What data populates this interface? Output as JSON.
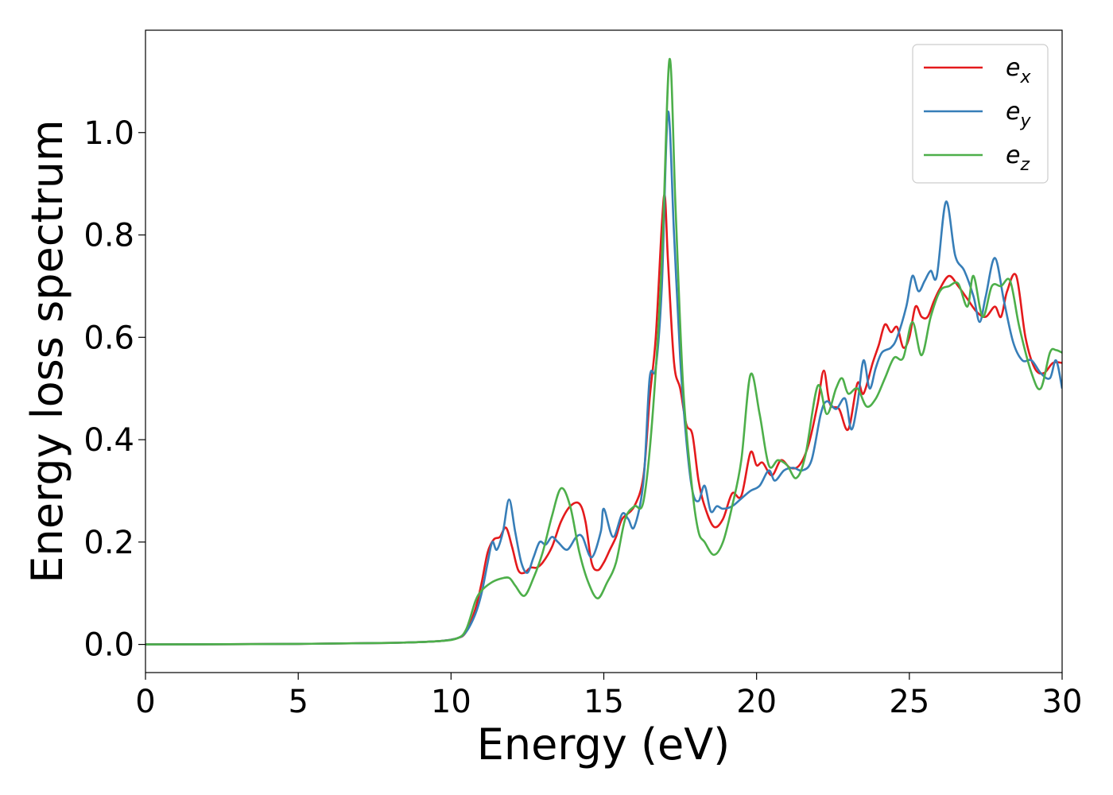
{
  "chart_data": {
    "type": "line",
    "title": "",
    "xlabel": "Energy (eV)",
    "ylabel": "Energy loss spectrum",
    "xlim": [
      0,
      30
    ],
    "ylim": [
      -0.055,
      1.2
    ],
    "xticks": [
      0,
      5,
      10,
      15,
      20,
      25,
      30
    ],
    "xtick_labels": [
      "0",
      "5",
      "10",
      "15",
      "20",
      "25",
      "30"
    ],
    "yticks": [
      0.0,
      0.2,
      0.4,
      0.6,
      0.8,
      1.0
    ],
    "ytick_labels": [
      "0.0",
      "0.2",
      "0.4",
      "0.6",
      "0.8",
      "1.0"
    ],
    "grid": false,
    "legend_position": "top-right",
    "series": [
      {
        "name": "e_x",
        "label_main": "e",
        "label_sub": "x",
        "color": "#e41a1c",
        "points": [
          [
            0,
            0.0
          ],
          [
            5,
            0.001
          ],
          [
            8,
            0.003
          ],
          [
            9.5,
            0.006
          ],
          [
            10.2,
            0.012
          ],
          [
            10.5,
            0.025
          ],
          [
            10.8,
            0.07
          ],
          [
            11.0,
            0.12
          ],
          [
            11.2,
            0.18
          ],
          [
            11.4,
            0.205
          ],
          [
            11.6,
            0.21
          ],
          [
            11.8,
            0.228
          ],
          [
            12.0,
            0.19
          ],
          [
            12.2,
            0.145
          ],
          [
            12.4,
            0.14
          ],
          [
            12.6,
            0.15
          ],
          [
            12.8,
            0.15
          ],
          [
            13.0,
            0.16
          ],
          [
            13.3,
            0.19
          ],
          [
            13.6,
            0.24
          ],
          [
            13.9,
            0.27
          ],
          [
            14.2,
            0.275
          ],
          [
            14.4,
            0.24
          ],
          [
            14.6,
            0.16
          ],
          [
            14.8,
            0.145
          ],
          [
            15.0,
            0.16
          ],
          [
            15.2,
            0.185
          ],
          [
            15.4,
            0.21
          ],
          [
            15.6,
            0.245
          ],
          [
            16.0,
            0.27
          ],
          [
            16.3,
            0.33
          ],
          [
            16.5,
            0.48
          ],
          [
            16.7,
            0.6
          ],
          [
            16.9,
            0.82
          ],
          [
            17.0,
            0.875
          ],
          [
            17.1,
            0.75
          ],
          [
            17.3,
            0.55
          ],
          [
            17.5,
            0.5
          ],
          [
            17.7,
            0.43
          ],
          [
            17.9,
            0.41
          ],
          [
            18.1,
            0.32
          ],
          [
            18.3,
            0.27
          ],
          [
            18.6,
            0.23
          ],
          [
            18.9,
            0.245
          ],
          [
            19.2,
            0.295
          ],
          [
            19.5,
            0.29
          ],
          [
            19.8,
            0.375
          ],
          [
            20.0,
            0.35
          ],
          [
            20.2,
            0.355
          ],
          [
            20.5,
            0.33
          ],
          [
            20.8,
            0.36
          ],
          [
            21.1,
            0.345
          ],
          [
            21.4,
            0.35
          ],
          [
            21.7,
            0.39
          ],
          [
            22.0,
            0.47
          ],
          [
            22.2,
            0.535
          ],
          [
            22.4,
            0.47
          ],
          [
            22.7,
            0.46
          ],
          [
            23.0,
            0.42
          ],
          [
            23.3,
            0.51
          ],
          [
            23.5,
            0.49
          ],
          [
            23.8,
            0.55
          ],
          [
            24.0,
            0.585
          ],
          [
            24.2,
            0.625
          ],
          [
            24.4,
            0.61
          ],
          [
            24.6,
            0.62
          ],
          [
            24.8,
            0.58
          ],
          [
            25.0,
            0.6
          ],
          [
            25.2,
            0.66
          ],
          [
            25.4,
            0.64
          ],
          [
            25.6,
            0.64
          ],
          [
            25.8,
            0.67
          ],
          [
            26.0,
            0.695
          ],
          [
            26.3,
            0.72
          ],
          [
            26.6,
            0.7
          ],
          [
            26.9,
            0.675
          ],
          [
            27.2,
            0.65
          ],
          [
            27.5,
            0.64
          ],
          [
            27.8,
            0.66
          ],
          [
            28.0,
            0.64
          ],
          [
            28.2,
            0.69
          ],
          [
            28.5,
            0.72
          ],
          [
            28.8,
            0.6
          ],
          [
            29.1,
            0.54
          ],
          [
            29.4,
            0.53
          ],
          [
            29.7,
            0.55
          ],
          [
            30.0,
            0.55
          ]
        ]
      },
      {
        "name": "e_y",
        "label_main": "e",
        "label_sub": "y",
        "color": "#377eb8",
        "points": [
          [
            0,
            0.0
          ],
          [
            5,
            0.001
          ],
          [
            8,
            0.003
          ],
          [
            9.5,
            0.006
          ],
          [
            10.2,
            0.012
          ],
          [
            10.5,
            0.025
          ],
          [
            10.8,
            0.06
          ],
          [
            11.0,
            0.1
          ],
          [
            11.2,
            0.16
          ],
          [
            11.35,
            0.2
          ],
          [
            11.5,
            0.185
          ],
          [
            11.7,
            0.22
          ],
          [
            11.9,
            0.283
          ],
          [
            12.1,
            0.22
          ],
          [
            12.3,
            0.16
          ],
          [
            12.5,
            0.14
          ],
          [
            12.7,
            0.17
          ],
          [
            12.9,
            0.2
          ],
          [
            13.1,
            0.195
          ],
          [
            13.3,
            0.21
          ],
          [
            13.5,
            0.2
          ],
          [
            13.8,
            0.185
          ],
          [
            14.1,
            0.21
          ],
          [
            14.3,
            0.21
          ],
          [
            14.6,
            0.17
          ],
          [
            14.9,
            0.22
          ],
          [
            15.0,
            0.265
          ],
          [
            15.3,
            0.21
          ],
          [
            15.6,
            0.255
          ],
          [
            15.8,
            0.245
          ],
          [
            16.0,
            0.23
          ],
          [
            16.3,
            0.32
          ],
          [
            16.5,
            0.52
          ],
          [
            16.7,
            0.54
          ],
          [
            16.9,
            0.7
          ],
          [
            17.1,
            1.04
          ],
          [
            17.3,
            0.8
          ],
          [
            17.5,
            0.56
          ],
          [
            17.7,
            0.4
          ],
          [
            17.9,
            0.3
          ],
          [
            18.1,
            0.28
          ],
          [
            18.3,
            0.31
          ],
          [
            18.5,
            0.26
          ],
          [
            18.7,
            0.27
          ],
          [
            18.9,
            0.265
          ],
          [
            19.2,
            0.27
          ],
          [
            19.5,
            0.285
          ],
          [
            19.8,
            0.3
          ],
          [
            20.1,
            0.31
          ],
          [
            20.4,
            0.34
          ],
          [
            20.6,
            0.32
          ],
          [
            20.9,
            0.34
          ],
          [
            21.2,
            0.345
          ],
          [
            21.5,
            0.34
          ],
          [
            21.8,
            0.36
          ],
          [
            22.1,
            0.45
          ],
          [
            22.3,
            0.475
          ],
          [
            22.6,
            0.46
          ],
          [
            22.9,
            0.48
          ],
          [
            23.1,
            0.42
          ],
          [
            23.3,
            0.47
          ],
          [
            23.5,
            0.555
          ],
          [
            23.7,
            0.5
          ],
          [
            23.9,
            0.54
          ],
          [
            24.1,
            0.57
          ],
          [
            24.4,
            0.58
          ],
          [
            24.6,
            0.6
          ],
          [
            24.9,
            0.66
          ],
          [
            25.1,
            0.72
          ],
          [
            25.3,
            0.69
          ],
          [
            25.5,
            0.71
          ],
          [
            25.7,
            0.73
          ],
          [
            25.9,
            0.72
          ],
          [
            26.2,
            0.865
          ],
          [
            26.5,
            0.76
          ],
          [
            26.8,
            0.73
          ],
          [
            27.1,
            0.68
          ],
          [
            27.3,
            0.63
          ],
          [
            27.5,
            0.68
          ],
          [
            27.8,
            0.755
          ],
          [
            28.1,
            0.67
          ],
          [
            28.4,
            0.59
          ],
          [
            28.7,
            0.555
          ],
          [
            29.0,
            0.555
          ],
          [
            29.3,
            0.53
          ],
          [
            29.6,
            0.52
          ],
          [
            29.8,
            0.555
          ],
          [
            30.0,
            0.5
          ]
        ]
      },
      {
        "name": "e_z",
        "label_main": "e",
        "label_sub": "z",
        "color": "#4daf4a",
        "points": [
          [
            0,
            0.0
          ],
          [
            5,
            0.001
          ],
          [
            8,
            0.003
          ],
          [
            9.5,
            0.006
          ],
          [
            10.2,
            0.012
          ],
          [
            10.5,
            0.03
          ],
          [
            10.8,
            0.085
          ],
          [
            11.0,
            0.105
          ],
          [
            11.3,
            0.12
          ],
          [
            11.6,
            0.128
          ],
          [
            11.9,
            0.13
          ],
          [
            12.1,
            0.115
          ],
          [
            12.4,
            0.095
          ],
          [
            12.7,
            0.13
          ],
          [
            13.0,
            0.18
          ],
          [
            13.3,
            0.25
          ],
          [
            13.6,
            0.305
          ],
          [
            13.9,
            0.27
          ],
          [
            14.2,
            0.18
          ],
          [
            14.5,
            0.12
          ],
          [
            14.8,
            0.09
          ],
          [
            15.1,
            0.12
          ],
          [
            15.4,
            0.16
          ],
          [
            15.7,
            0.245
          ],
          [
            16.0,
            0.27
          ],
          [
            16.3,
            0.28
          ],
          [
            16.6,
            0.45
          ],
          [
            16.9,
            0.75
          ],
          [
            17.15,
            1.143
          ],
          [
            17.35,
            0.85
          ],
          [
            17.6,
            0.5
          ],
          [
            17.9,
            0.3
          ],
          [
            18.1,
            0.22
          ],
          [
            18.3,
            0.2
          ],
          [
            18.6,
            0.175
          ],
          [
            18.9,
            0.2
          ],
          [
            19.2,
            0.27
          ],
          [
            19.5,
            0.36
          ],
          [
            19.8,
            0.527
          ],
          [
            20.1,
            0.45
          ],
          [
            20.4,
            0.35
          ],
          [
            20.7,
            0.36
          ],
          [
            21.0,
            0.35
          ],
          [
            21.3,
            0.325
          ],
          [
            21.6,
            0.37
          ],
          [
            22.0,
            0.505
          ],
          [
            22.3,
            0.45
          ],
          [
            22.6,
            0.5
          ],
          [
            22.8,
            0.52
          ],
          [
            23.0,
            0.49
          ],
          [
            23.3,
            0.5
          ],
          [
            23.6,
            0.465
          ],
          [
            23.9,
            0.48
          ],
          [
            24.2,
            0.52
          ],
          [
            24.5,
            0.56
          ],
          [
            24.8,
            0.56
          ],
          [
            25.1,
            0.63
          ],
          [
            25.4,
            0.565
          ],
          [
            25.7,
            0.64
          ],
          [
            26.0,
            0.69
          ],
          [
            26.3,
            0.7
          ],
          [
            26.6,
            0.705
          ],
          [
            26.9,
            0.66
          ],
          [
            27.1,
            0.72
          ],
          [
            27.4,
            0.64
          ],
          [
            27.7,
            0.7
          ],
          [
            28.0,
            0.7
          ],
          [
            28.3,
            0.71
          ],
          [
            28.6,
            0.62
          ],
          [
            29.0,
            0.53
          ],
          [
            29.3,
            0.5
          ],
          [
            29.6,
            0.57
          ],
          [
            29.8,
            0.575
          ],
          [
            30.0,
            0.57
          ]
        ]
      }
    ]
  }
}
